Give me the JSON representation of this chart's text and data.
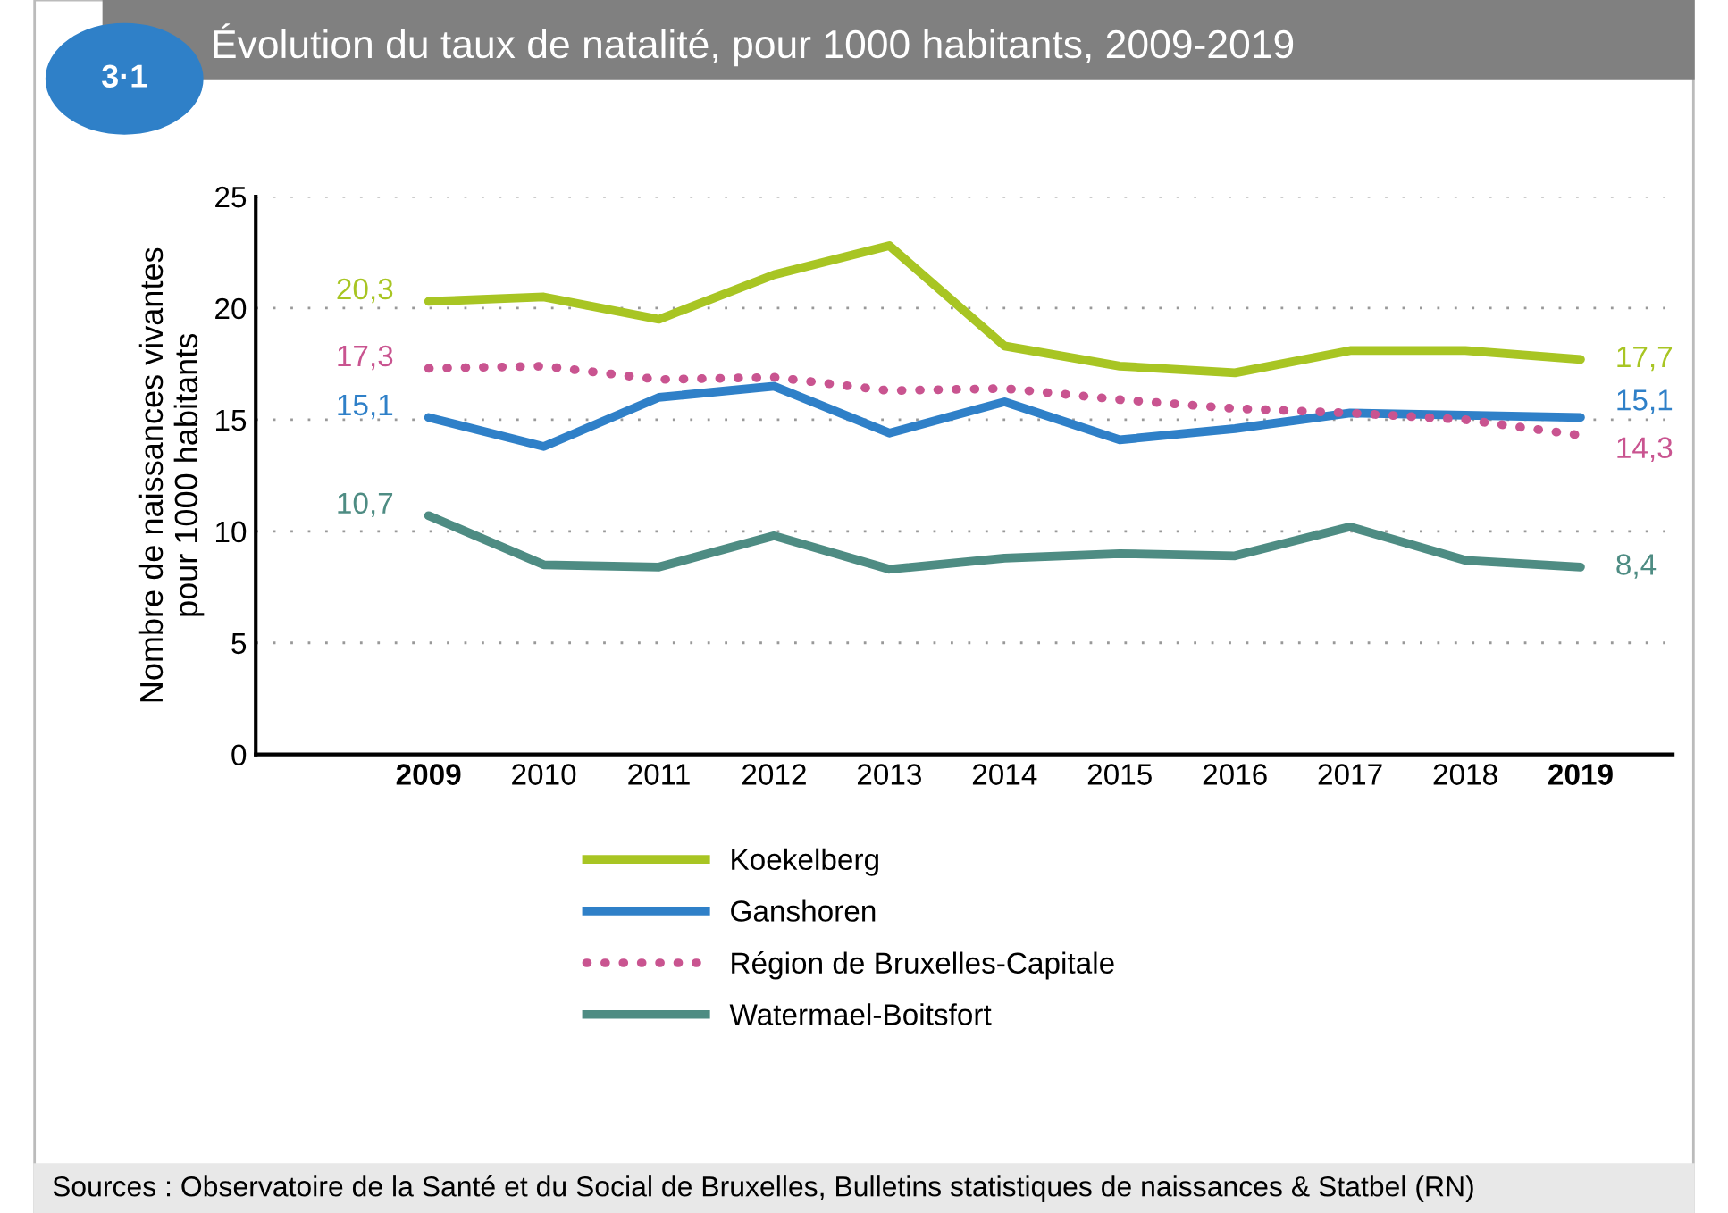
{
  "chart_data": {
    "type": "line",
    "title": "Évolution du taux de natalité, pour 1000 habitants, 2009-2019",
    "ylabel": "Nombre de naissances vivantes\npour 1000 habitants",
    "categories": [
      "2009",
      "2010",
      "2011",
      "2012",
      "2013",
      "2014",
      "2015",
      "2016",
      "2017",
      "2018",
      "2019"
    ],
    "series": [
      {
        "name": "Koekelberg",
        "color": "#a8c523",
        "line_style": "solid",
        "values": [
          20.3,
          20.5,
          19.5,
          21.5,
          22.8,
          18.3,
          17.4,
          17.1,
          18.1,
          18.1,
          17.7
        ],
        "value_labels": [
          "20,3",
          null,
          null,
          null,
          null,
          null,
          null,
          null,
          null,
          null,
          "17,7"
        ]
      },
      {
        "name": "Ganshoren",
        "color": "#2f80c8",
        "line_style": "solid",
        "values": [
          15.1,
          13.8,
          16.0,
          16.5,
          14.4,
          15.8,
          14.1,
          14.6,
          15.3,
          15.2,
          15.1
        ],
        "value_labels": [
          "15,1",
          null,
          null,
          null,
          null,
          null,
          null,
          null,
          null,
          null,
          "15,1"
        ]
      },
      {
        "name": "Région de Bruxelles-Capitale",
        "color": "#c95490",
        "line_style": "dotted",
        "values": [
          17.3,
          17.4,
          16.8,
          16.9,
          16.3,
          16.4,
          15.9,
          15.5,
          15.3,
          15.0,
          14.3
        ],
        "value_labels": [
          "17,3",
          null,
          null,
          null,
          null,
          null,
          null,
          null,
          null,
          null,
          "14,3"
        ]
      },
      {
        "name": "Watermael-Boitsfort",
        "color": "#4e8c83",
        "line_style": "solid",
        "values": [
          10.7,
          8.5,
          8.4,
          9.8,
          8.3,
          8.8,
          9.0,
          8.9,
          10.2,
          8.7,
          8.4
        ],
        "value_labels": [
          "10,7",
          null,
          null,
          null,
          null,
          null,
          null,
          null,
          null,
          null,
          "8,4"
        ]
      }
    ],
    "ylim": [
      0,
      25
    ],
    "yticks": [
      0,
      5,
      10,
      15,
      20,
      25
    ],
    "grid": "y",
    "legend": "bottom",
    "marker": "none",
    "annotations": [
      "3·1",
      "Sources : Observatoire de la Santé et du Social de Bruxelles, Bulletins statistiques de naissances & Statbel (RN)"
    ]
  }
}
